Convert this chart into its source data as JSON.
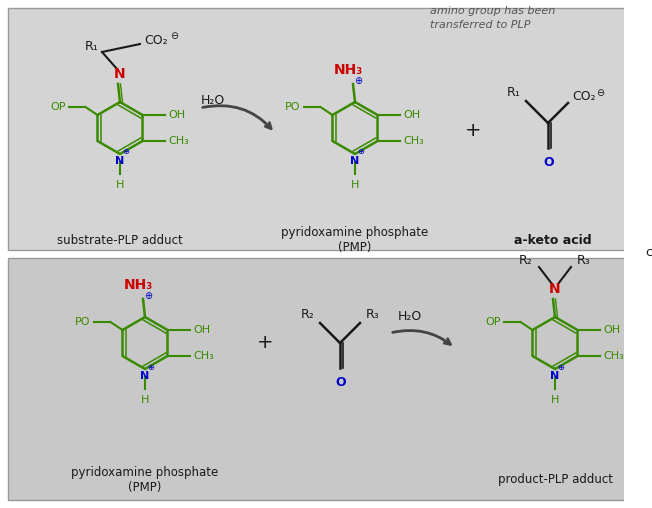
{
  "bg_top": "#d4d4d4",
  "bg_bottom": "#c8c8c8",
  "green": "#3a8a00",
  "red": "#cc0000",
  "blue": "#0000cc",
  "dark": "#1a1a1a",
  "gray_text": "#555555",
  "top_annotation": "amino group has been\ntransferred to PLP",
  "step1_label1": "substrate-PLP adduct",
  "step1_label2": "pyridoxamine phosphate\n(PMP)",
  "step1_label3": "a-keto acid",
  "step2_label1": "pyridoxamine phosphate\n(PMP)",
  "step2_label2": "product-PLP adduct",
  "arrow_color": "#444444"
}
